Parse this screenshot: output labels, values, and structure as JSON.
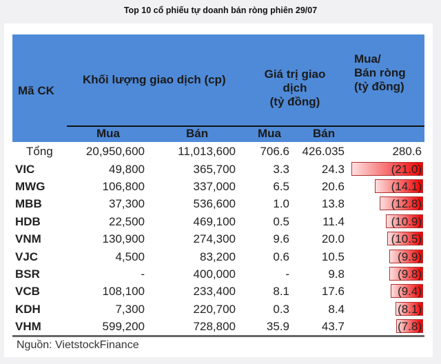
{
  "title": "Top 10 cổ phiếu tự doanh bán ròng phiên 29/07",
  "headers": {
    "code": "Mã CK",
    "volume": "Khối lượng giao dịch (cp)",
    "value_line1": "Giá trị giao dịch",
    "value_line2": "(tỷ đồng)",
    "net_line1": "Mua/",
    "net_line2": "Bán ròng",
    "net_line3": "(tỷ đồng)",
    "buy": "Mua",
    "sell": "Bán",
    "buy2": "Mua",
    "sell2": "Bán"
  },
  "colors": {
    "header_bg": "#4f8ad8",
    "bar": "#f00000"
  },
  "chart_data": {
    "type": "table",
    "title": "Top 10 cổ phiếu tự doanh bán ròng phiên 29/07",
    "columns": [
      "Mã CK",
      "Khối lượng Mua",
      "Khối lượng Bán",
      "Giá trị Mua",
      "Giá trị Bán",
      "Mua/Bán ròng"
    ],
    "total": {
      "label": "Tổng",
      "vol_buy": "20,950,600",
      "vol_sell": "11,013,600",
      "val_buy": "706.6",
      "val_sell": "426.035",
      "net": "280.6"
    },
    "rows": [
      {
        "code": "VIC",
        "vol_buy": "49,800",
        "vol_sell": "365,700",
        "val_buy": "3.3",
        "val_sell": "24.3",
        "net": "(21.0)",
        "net_value": -21.0
      },
      {
        "code": "MWG",
        "vol_buy": "106,800",
        "vol_sell": "337,000",
        "val_buy": "6.5",
        "val_sell": "20.6",
        "net": "(14.1)",
        "net_value": -14.1
      },
      {
        "code": "MBB",
        "vol_buy": "37,300",
        "vol_sell": "536,600",
        "val_buy": "1.0",
        "val_sell": "13.8",
        "net": "(12.8)",
        "net_value": -12.8
      },
      {
        "code": "HDB",
        "vol_buy": "22,500",
        "vol_sell": "469,100",
        "val_buy": "0.5",
        "val_sell": "11.4",
        "net": "(10.9)",
        "net_value": -10.9
      },
      {
        "code": "VNM",
        "vol_buy": "130,900",
        "vol_sell": "274,300",
        "val_buy": "9.6",
        "val_sell": "20.0",
        "net": "(10.5)",
        "net_value": -10.5
      },
      {
        "code": "VJC",
        "vol_buy": "4,500",
        "vol_sell": "83,200",
        "val_buy": "0.6",
        "val_sell": "10.5",
        "net": "(9.9)",
        "net_value": -9.9
      },
      {
        "code": "BSR",
        "vol_buy": "-",
        "vol_sell": "400,000",
        "val_buy": "-",
        "val_sell": "9.8",
        "net": "(9.8)",
        "net_value": -9.8
      },
      {
        "code": "VCB",
        "vol_buy": "108,100",
        "vol_sell": "233,400",
        "val_buy": "8.1",
        "val_sell": "17.6",
        "net": "(9.4)",
        "net_value": -9.4
      },
      {
        "code": "KDH",
        "vol_buy": "7,300",
        "vol_sell": "220,700",
        "val_buy": "0.3",
        "val_sell": "8.4",
        "net": "(8.1)",
        "net_value": -8.1
      },
      {
        "code": "VHM",
        "vol_buy": "599,200",
        "vol_sell": "728,800",
        "val_buy": "35.9",
        "val_sell": "43.7",
        "net": "(7.8)",
        "net_value": -7.8
      }
    ]
  },
  "source": "Nguồn: VietstockFinance"
}
